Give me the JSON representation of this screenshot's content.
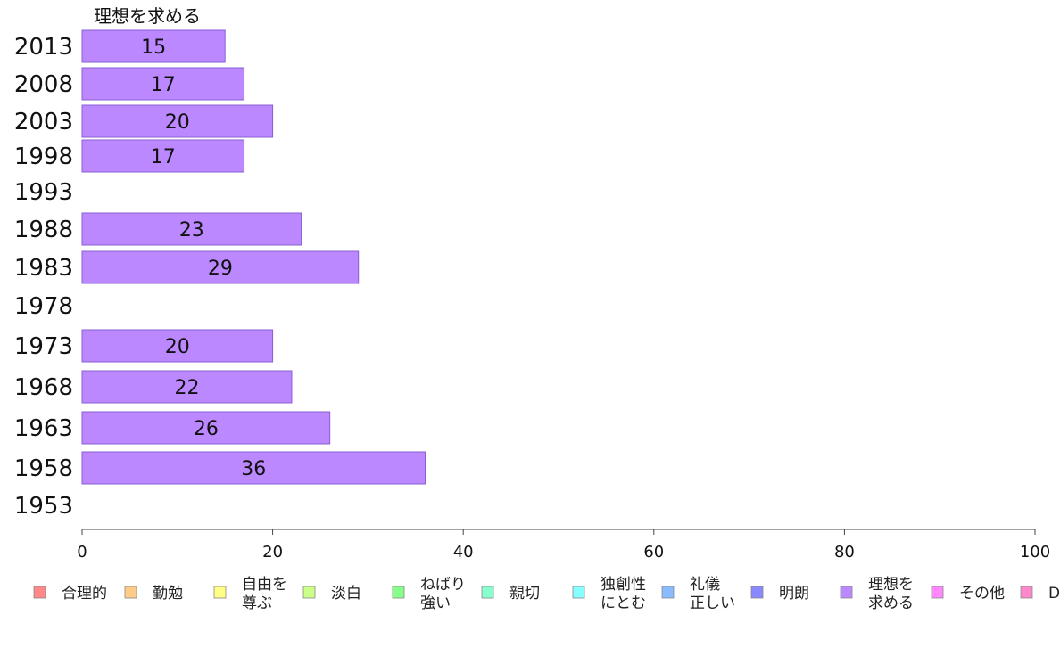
{
  "chart_data": {
    "type": "bar",
    "orientation": "horizontal",
    "title": "理想を求める",
    "bar_color": "#bb88ff",
    "bar_stroke": "#8a5fd6",
    "categories": [
      "2013",
      "2008",
      "2003",
      "1998",
      "1993",
      "1988",
      "1983",
      "1978",
      "1973",
      "1968",
      "1963",
      "1958",
      "1953"
    ],
    "values": [
      15,
      17,
      20,
      17,
      null,
      23,
      29,
      null,
      20,
      22,
      26,
      36,
      null
    ],
    "data_labels": [
      "15",
      "17",
      "20",
      "17",
      "",
      "23",
      "29",
      "",
      "20",
      "22",
      "26",
      "36",
      ""
    ],
    "xlim": [
      0,
      100
    ],
    "xticks": [
      "0",
      "20",
      "40",
      "60",
      "80",
      "100"
    ],
    "grid": false,
    "legend_position": "bottom",
    "legend": [
      {
        "label": "合理的",
        "color": "#ff8888"
      },
      {
        "label": "勤勉",
        "color": "#ffcc88"
      },
      {
        "label": "自由を\n尊ぶ",
        "color": "#ffff88"
      },
      {
        "label": "淡白",
        "color": "#ccff88"
      },
      {
        "label": "ねばり\n強い",
        "color": "#88ff88"
      },
      {
        "label": "親切",
        "color": "#88ffcc"
      },
      {
        "label": "独創性\nにとむ",
        "color": "#88ffff"
      },
      {
        "label": "礼儀\n正しい",
        "color": "#88bbff"
      },
      {
        "label": "明朗",
        "color": "#8888ff"
      },
      {
        "label": "理想を\n求める",
        "color": "#bb88ff"
      },
      {
        "label": "その他",
        "color": "#ff88ff"
      },
      {
        "label": "D",
        "color": "#ff88cc"
      }
    ]
  }
}
